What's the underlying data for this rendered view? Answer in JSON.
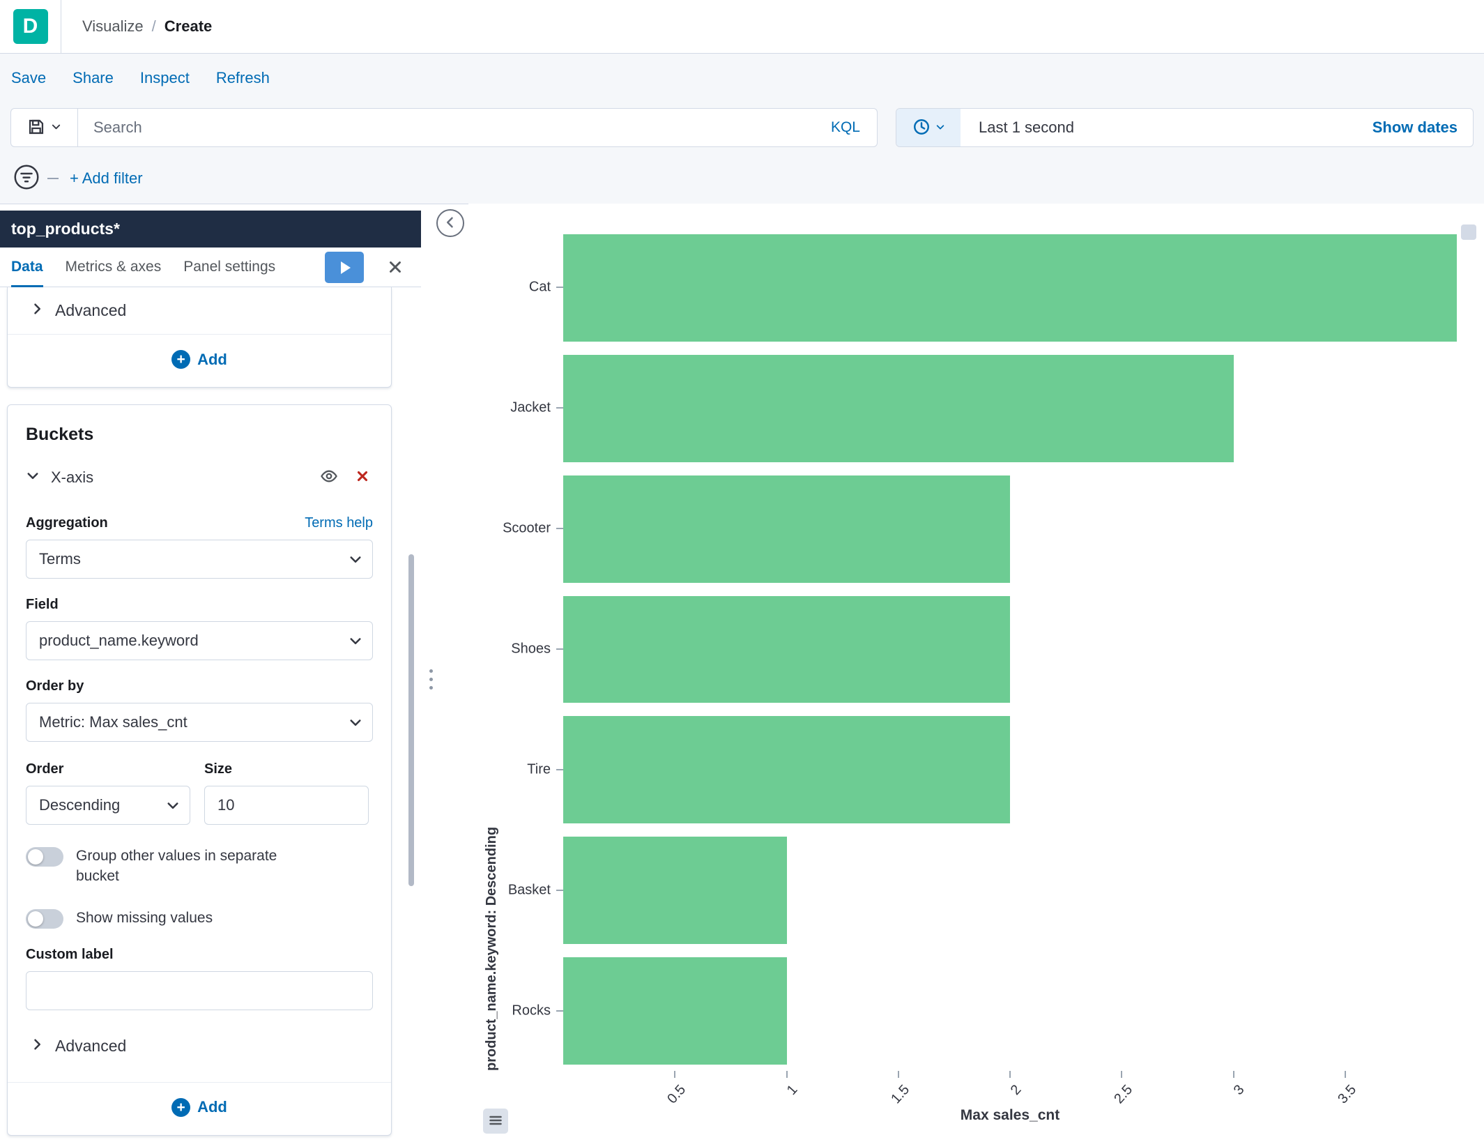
{
  "app": {
    "logo_letter": "D"
  },
  "breadcrumb": {
    "items": [
      "Visualize",
      "Create"
    ],
    "separator": "/"
  },
  "action_bar": {
    "links": [
      "Save",
      "Share",
      "Inspect",
      "Refresh"
    ]
  },
  "query_bar": {
    "search_placeholder": "Search",
    "kql_label": "KQL",
    "time_value": "Last 1 second",
    "show_dates_label": "Show dates"
  },
  "filter_bar": {
    "add_filter_label": "+ Add filter"
  },
  "editor": {
    "title": "top_products*",
    "tabs": [
      {
        "label": "Data",
        "active": true
      },
      {
        "label": "Metrics & axes",
        "active": false
      },
      {
        "label": "Panel settings",
        "active": false
      }
    ],
    "metrics_section": {
      "advanced_label": "Advanced",
      "add_label": "Add"
    },
    "buckets": {
      "heading": "Buckets",
      "axis_label": "X-axis",
      "aggregation_label": "Aggregation",
      "terms_help_label": "Terms help",
      "aggregation_value": "Terms",
      "field_label": "Field",
      "field_value": "product_name.keyword",
      "order_by_label": "Order by",
      "order_by_value": "Metric: Max sales_cnt",
      "order_label": "Order",
      "order_value": "Descending",
      "size_label": "Size",
      "size_value": "10",
      "group_other_label": "Group other values in separate bucket",
      "show_missing_label": "Show missing values",
      "custom_label_label": "Custom label",
      "custom_label_value": "",
      "advanced_label": "Advanced",
      "add_label": "Add"
    }
  },
  "icons": {
    "plus": "+"
  },
  "colors": {
    "primary": "#006BB4",
    "panel_header": "#1F2D44",
    "danger": "#BD271E",
    "logo": "#00B3A4"
  },
  "chart_data": {
    "type": "bar",
    "orientation": "horizontal",
    "categories": [
      "Cat",
      "Jacket",
      "Scooter",
      "Shoes",
      "Tire",
      "Basket",
      "Rocks"
    ],
    "values": [
      4,
      3,
      2,
      2,
      2,
      1,
      1
    ],
    "series_name": "Max sales_cnt",
    "xlabel": "Max sales_cnt",
    "ylabel": "product_name.keyword: Descending",
    "xlim": [
      0,
      4
    ],
    "xticks": [
      0.5,
      1,
      1.5,
      2,
      2.5,
      3,
      3.5
    ],
    "grid": false,
    "legend": "hidden",
    "bar_color": "#6DCC93"
  }
}
